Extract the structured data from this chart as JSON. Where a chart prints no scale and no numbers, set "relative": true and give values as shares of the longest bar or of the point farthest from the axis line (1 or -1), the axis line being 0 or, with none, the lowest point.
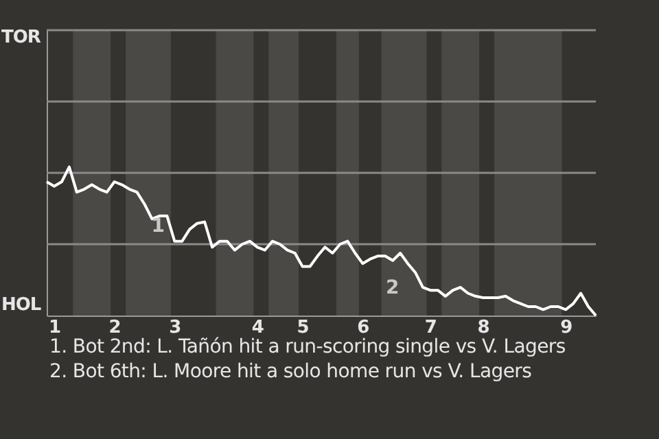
{
  "chart_data": {
    "type": "line",
    "relative": true,
    "categories": [
      null,
      "1",
      null,
      null,
      null,
      null,
      null,
      null,
      null,
      "2",
      null,
      null,
      null,
      null,
      null,
      null,
      null,
      "3",
      null,
      null,
      null,
      null,
      null,
      null,
      null,
      null,
      null,
      null,
      "4",
      null,
      null,
      null,
      null,
      null,
      "5",
      null,
      null,
      null,
      null,
      null,
      null,
      null,
      "6",
      null,
      null,
      null,
      null,
      null,
      null,
      null,
      null,
      "7",
      null,
      null,
      null,
      null,
      null,
      null,
      "8",
      null,
      null,
      null,
      null,
      null,
      null,
      null,
      null,
      null,
      null,
      "9",
      null,
      null,
      null,
      null
    ],
    "series": [
      {
        "color": "#ffffff",
        "values": [
          0.9,
          0.87,
          0.9,
          1,
          0.83,
          0.85,
          0.88,
          0.85,
          0.83,
          0.9,
          0.88,
          0.85,
          0.83,
          0.75,
          0.65,
          0.67,
          0.67,
          0.5,
          0.5,
          0.58,
          0.62,
          0.63,
          0.46,
          0.5,
          0.5,
          0.44,
          0.48,
          0.5,
          0.46,
          0.44,
          0.5,
          0.48,
          0.44,
          0.42,
          0.33,
          0.33,
          0.4,
          0.46,
          0.42,
          0.48,
          0.5,
          0.42,
          0.35,
          0.38,
          0.4,
          0.4,
          0.37,
          0.42,
          0.35,
          0.29,
          0.19,
          0.17,
          0.17,
          0.13,
          0.17,
          0.19,
          0.15,
          0.13,
          0.12,
          0.12,
          0.12,
          0.13,
          0.1,
          0.08,
          0.06,
          0.06,
          0.04,
          0.06,
          0.06,
          0.04,
          0.08,
          0.15,
          0.06,
          0
        ]
      }
    ],
    "ref_lines": [
      {
        "axis": "y",
        "value": 0.48,
        "color": "#8a8a8a"
      },
      {
        "axis": "y",
        "value": 0.96,
        "color": "#8a8a8a"
      },
      {
        "axis": "y",
        "value": 1.44,
        "color": "#8a8a8a"
      },
      {
        "axis": "y",
        "value": 1.92,
        "color": "#8a8a8a"
      }
    ],
    "annotations": [
      "TOR",
      "HOL",
      {
        "text": "1",
        "y": 0.62
      },
      "2",
      "1. Bot 2nd: L. Tañón hit a run-scoring single vs V. Lagers",
      "2. Bot 6th: L. Moore hit a solo home run vs V. Lagers"
    ],
    "marker": "none",
    "line_style": "solid"
  }
}
